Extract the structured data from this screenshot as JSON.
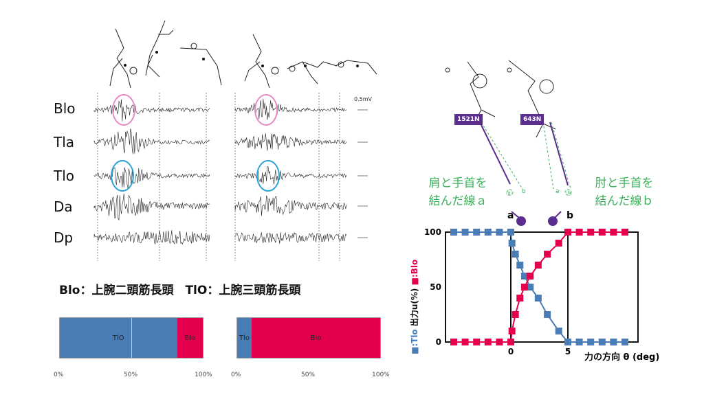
{
  "emg": {
    "labels": [
      "Blo",
      "Tla",
      "Tlo",
      "Da",
      "Dp"
    ],
    "scale_label": "0.5mV"
  },
  "legend": {
    "text": "Blo：上腕二頭筋長頭　TlO：上腕三頭筋長頭"
  },
  "ratio_bars": [
    {
      "segments": [
        {
          "label": "TlO",
          "value": 82,
          "color": "#4a7db5"
        },
        {
          "label": "Blo",
          "value": 18,
          "color": "#e5004f"
        }
      ]
    },
    {
      "segments": [
        {
          "label": "Tlo",
          "value": 10,
          "color": "#4a7db5"
        },
        {
          "label": "Blo",
          "value": 90,
          "color": "#e5004f"
        }
      ]
    }
  ],
  "ratio_axis": [
    "0%",
    "50%",
    "100%"
  ],
  "forces": {
    "left": "1521N",
    "right": "643N"
  },
  "line_labels": {
    "a": "肩と手首を\n結んだ線ａ",
    "b": "肘と手首を\n結んだ線ｂ"
  },
  "markers": {
    "a": "a",
    "b": "b",
    "circ_a": "ⓐ",
    "b_small": "b",
    "a_small": "a",
    "circ_b": "ⓑ"
  },
  "chart_data": {
    "type": "scatter",
    "ylabel_blue": "■:Tlo",
    "ylabel_red": "■:Blo",
    "ylabel_text": "出力u(%)",
    "xlabel": "力の方向 θ (deg)",
    "x_ticks": [
      "0",
      "5"
    ],
    "y_ticks": [
      "0",
      "50",
      "100"
    ],
    "ylim": [
      0,
      100
    ],
    "series": [
      {
        "name": "Tlo",
        "color": "#4a7db5",
        "points": [
          [
            -5,
            100
          ],
          [
            -4,
            100
          ],
          [
            -3,
            100
          ],
          [
            -2,
            100
          ],
          [
            -1,
            100
          ],
          [
            0,
            100
          ],
          [
            0.1,
            90
          ],
          [
            0.4,
            80
          ],
          [
            0.8,
            70
          ],
          [
            1.2,
            60
          ],
          [
            1.7,
            50
          ],
          [
            2.4,
            40
          ],
          [
            3.2,
            25
          ],
          [
            4.2,
            10
          ],
          [
            5,
            0
          ],
          [
            6,
            0
          ],
          [
            7,
            0
          ],
          [
            8,
            0
          ],
          [
            9,
            0
          ],
          [
            10,
            0
          ]
        ]
      },
      {
        "name": "Blo",
        "color": "#e5004f",
        "points": [
          [
            -5,
            0
          ],
          [
            -4,
            0
          ],
          [
            -3,
            0
          ],
          [
            -2,
            0
          ],
          [
            -1,
            0
          ],
          [
            0,
            0
          ],
          [
            0.1,
            10
          ],
          [
            0.4,
            25
          ],
          [
            0.8,
            40
          ],
          [
            1.2,
            50
          ],
          [
            1.7,
            60
          ],
          [
            2.4,
            70
          ],
          [
            3.2,
            80
          ],
          [
            4.2,
            90
          ],
          [
            5,
            100
          ],
          [
            6,
            100
          ],
          [
            7,
            100
          ],
          [
            8,
            100
          ],
          [
            9,
            100
          ],
          [
            10,
            100
          ]
        ]
      }
    ]
  }
}
